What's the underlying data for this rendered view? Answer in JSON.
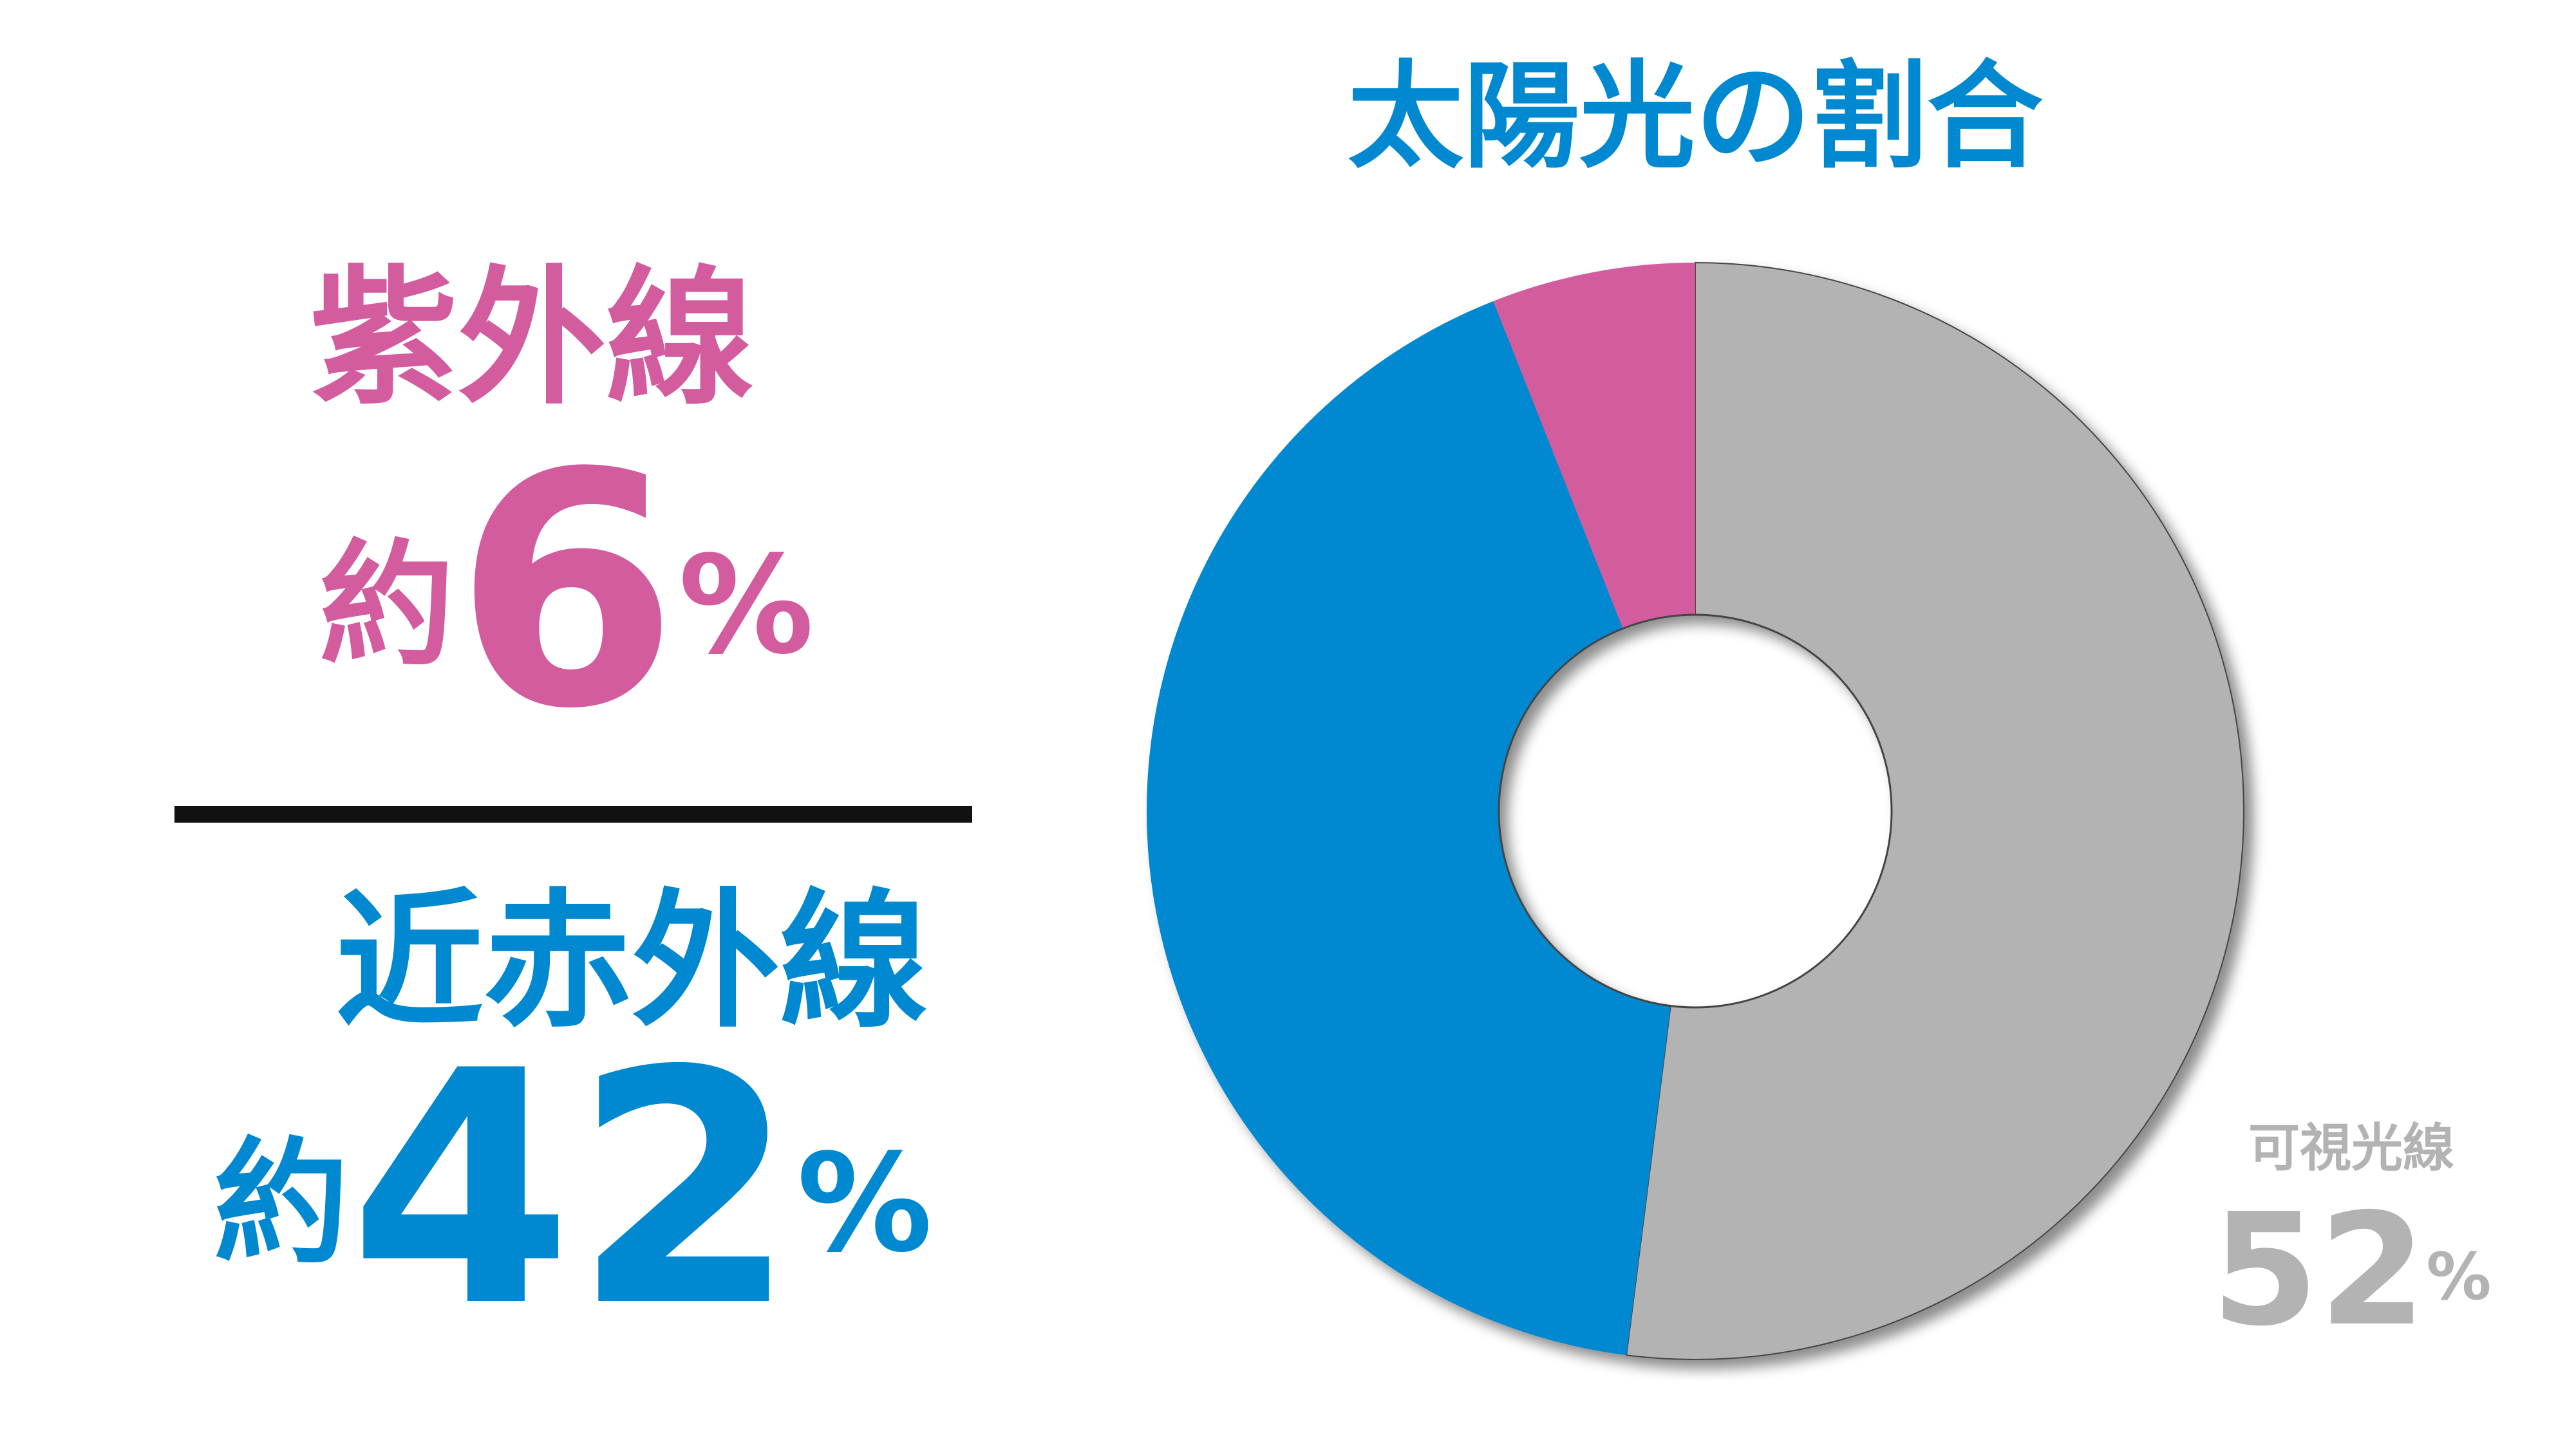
{
  "chart_data": {
    "type": "donut",
    "title": "太陽光の割合",
    "categories": [
      "可視光線",
      "近赤外線",
      "紫外線"
    ],
    "values": [
      52,
      42,
      6
    ],
    "value_labels": [
      "52%",
      "約42%",
      "約6%"
    ],
    "colors": [
      "#b3b3b3",
      "#0088d1",
      "#d35c9f"
    ]
  }
}
